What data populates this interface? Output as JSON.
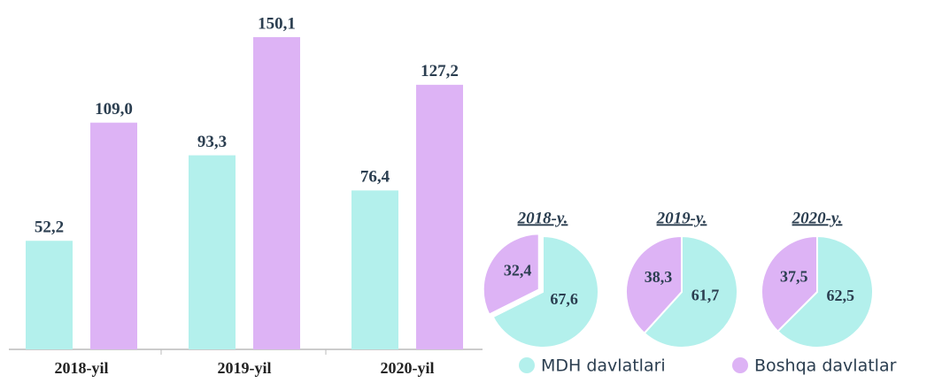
{
  "chart_data": [
    {
      "type": "bar",
      "categories": [
        "2018-yil",
        "2019-yil",
        "2020-yil"
      ],
      "series": [
        {
          "name": "MDH davlatlari",
          "color": "#b3f0ec",
          "values": [
            52.2,
            93.3,
            76.4
          ],
          "value_labels": [
            "52,2",
            "93,3",
            "76,4"
          ]
        },
        {
          "name": "Boshqa davlatlar",
          "color": "#ddb3f5",
          "values": [
            109.0,
            150.1,
            127.2
          ],
          "value_labels": [
            "109,0",
            "150,1",
            "127,2"
          ]
        }
      ]
    },
    {
      "type": "pie",
      "title": "2018-y.",
      "values": [
        67.6,
        32.4
      ],
      "value_labels": [
        "67,6",
        "32,4"
      ],
      "colors": [
        "#b3f0ec",
        "#ddb3f5"
      ]
    },
    {
      "type": "pie",
      "title": "2019-y.",
      "values": [
        61.7,
        38.3
      ],
      "value_labels": [
        "61,7",
        "38,3"
      ],
      "colors": [
        "#b3f0ec",
        "#ddb3f5"
      ]
    },
    {
      "type": "pie",
      "title": "2020-y.",
      "values": [
        62.5,
        37.5
      ],
      "value_labels": [
        "62,5",
        "37,5"
      ],
      "colors": [
        "#b3f0ec",
        "#ddb3f5"
      ]
    }
  ]
}
